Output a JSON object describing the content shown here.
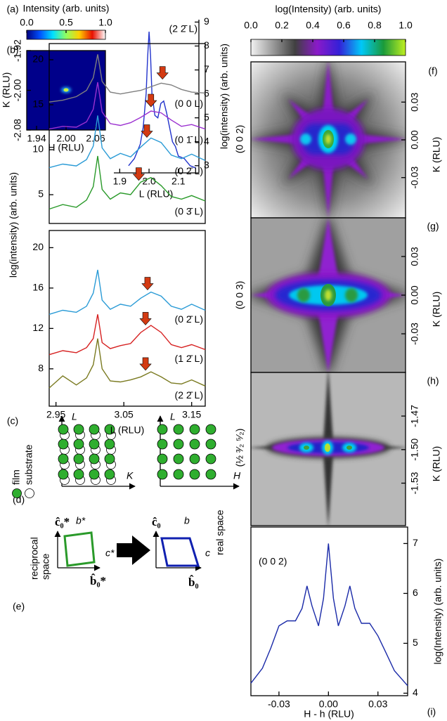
{
  "chart_data": [
    {
      "type": "heatmap",
      "panel": "(a)",
      "colorbar_title": "Intensity (arb. units)",
      "clim": [
        0,
        1
      ],
      "cticks": [
        {
          "value": 0,
          "label": "0.0"
        },
        0.5,
        {
          "value": 1,
          "label": "1.0"
        }
      ],
      "colormap": [
        "#00007f",
        "#0050ff",
        "#00e0ff",
        "#90ff60",
        "#ffd000",
        "#e81000",
        "#ffffff"
      ],
      "xlabel": "H (RLU)",
      "ylabel": "K (RLU)",
      "xlim": [
        1.92,
        2.08
      ],
      "xticks": [
        1.94,
        {
          "value": 2,
          "label": "2.00"
        },
        2.06
      ],
      "ylim": [
        -2.08,
        -1.92
      ],
      "yticks": [
        -1.92,
        {
          "value": -2,
          "label": "-2.00"
        },
        -2.08
      ]
    },
    {
      "type": "line",
      "x": [
        1.93,
        1.95,
        1.97,
        1.98,
        1.99,
        1.995,
        2.0,
        2.005,
        2.01,
        2.02,
        2.03,
        2.04,
        2.05,
        2.06,
        2.07,
        2.08,
        2.09,
        2.1,
        2.12,
        2.14,
        2.16
      ],
      "xlim": [
        1.88,
        2.17
      ],
      "xticks": [
        1.9,
        {
          "value": 2,
          "label": "2.0"
        },
        2.1
      ],
      "ylim": [
        2.7,
        9.1
      ],
      "yticks": [
        3,
        4,
        5,
        6,
        7,
        8,
        9
      ],
      "xlabel": "L (RLU)",
      "ylabel": "log(intensity) (arb. units)",
      "series": [
        {
          "name": "(2 2̄ L)",
          "color": "#2233cc",
          "values": [
            3.0,
            3.3,
            3.9,
            4.6,
            6.0,
            7.5,
            8.6,
            7.6,
            6.0,
            5.1,
            5.0,
            5.6,
            5.7,
            5.2,
            4.6,
            4.0,
            3.8,
            3.4,
            3.3,
            3.0,
            2.9
          ]
        }
      ]
    },
    {
      "type": "line",
      "panel": "(b)",
      "ylabel": "log(intensity) (arb. units)",
      "arrow_color": "#d33a12",
      "x": [
        2.94,
        2.96,
        2.98,
        2.995,
        3.005,
        3.0115,
        3.018,
        3.03,
        3.045,
        3.06,
        3.075,
        3.09,
        3.105,
        3.12,
        3.135,
        3.15,
        3.17
      ],
      "xlim": [
        2.94,
        3.17
      ],
      "ylim": [
        1.8,
        21.8
      ],
      "yticks": [
        5,
        10,
        15,
        20
      ],
      "series": [
        {
          "name": "(0 0 L)",
          "color": "#7f7f7f",
          "arrow_x": 3.107,
          "values": [
            15.3,
            15.5,
            15.9,
            16.6,
            18.0,
            20.6,
            17.6,
            16.4,
            16.2,
            16.4,
            16.6,
            17.0,
            17.4,
            17.2,
            16.7,
            16.4,
            16.3
          ]
        },
        {
          "name": "(0 1̄ L)",
          "color": "#9b30d0",
          "arrow_x": 3.09,
          "values": [
            12.3,
            12.6,
            12.5,
            13.1,
            14.5,
            17.5,
            14.2,
            12.9,
            12.7,
            13.0,
            13.6,
            14.3,
            14.1,
            13.3,
            12.6,
            12.8,
            12.3
          ]
        },
        {
          "name": "(0 2̄ L)",
          "color": "#2a9bd6",
          "arrow_x": 3.084,
          "values": [
            8.0,
            8.4,
            8.2,
            8.9,
            10.4,
            13.8,
            10.2,
            9.0,
            9.6,
            9.2,
            10.3,
            11.3,
            10.8,
            9.4,
            9.0,
            9.5,
            8.8
          ]
        },
        {
          "name": "(0 3̄ L)",
          "color": "#2a9a2a",
          "arrow_x": 3.072,
          "values": [
            3.4,
            3.9,
            3.6,
            4.4,
            5.9,
            9.3,
            5.6,
            4.5,
            5.2,
            5.0,
            6.4,
            6.9,
            6.0,
            4.8,
            4.5,
            4.9,
            4.3
          ]
        }
      ]
    },
    {
      "type": "line",
      "panel": "(c)",
      "xlabel": "L (RLU)",
      "arrow_color": "#d33a12",
      "x": [
        2.94,
        2.96,
        2.98,
        2.995,
        3.005,
        3.0115,
        3.018,
        3.03,
        3.045,
        3.06,
        3.075,
        3.09,
        3.105,
        3.12,
        3.135,
        3.15,
        3.17
      ],
      "xlim": [
        2.94,
        3.17
      ],
      "xticks": [
        2.95,
        3.05,
        3.15
      ],
      "ylim": [
        4.3,
        21.7
      ],
      "yticks": [
        8,
        12,
        16,
        20
      ],
      "series": [
        {
          "name": "(0 2̄ L)",
          "color": "#2a9bd6",
          "arrow_x": 3.085,
          "values": [
            13.4,
            13.8,
            13.6,
            14.2,
            15.5,
            17.8,
            14.8,
            13.9,
            14.4,
            14.2,
            15.0,
            15.6,
            15.2,
            14.2,
            13.9,
            14.4,
            13.8
          ]
        },
        {
          "name": "(1 2̄ L)",
          "color": "#d62020",
          "arrow_x": 3.082,
          "values": [
            9.4,
            9.8,
            9.6,
            10.1,
            11.0,
            13.4,
            10.6,
            10.0,
            10.3,
            10.5,
            11.6,
            12.3,
            11.6,
            10.4,
            10.1,
            10.4,
            9.9
          ]
        },
        {
          "name": "(2 2̄ L)",
          "color": "#7a7a20",
          "arrow_x": 3.082,
          "values": [
            6.1,
            7.3,
            6.4,
            7.1,
            8.4,
            11.0,
            8.0,
            6.8,
            6.7,
            6.9,
            7.2,
            7.7,
            7.2,
            6.6,
            6.5,
            6.9,
            6.3
          ]
        }
      ]
    },
    {
      "type": "heatmap",
      "panel": "(f)",
      "label": "(0 0 2)",
      "colorbar_title": "log(Intensity) (arb. units)",
      "clim": [
        0,
        1
      ],
      "cticks": [
        {
          "value": 0,
          "label": "0.0"
        },
        0.2,
        0.4,
        0.6,
        0.8,
        {
          "value": 1,
          "label": "1.0"
        }
      ],
      "colormap": [
        "#f2f2f2",
        "#9a9a9a",
        "#404040",
        "#8a1ac8",
        "#3420d8",
        "#00c8f8",
        "#1a9a3a",
        "#c0f020"
      ],
      "ylabel": "K (RLU)",
      "ylim": [
        -0.062,
        0.062
      ],
      "yticks": [
        0.03,
        {
          "value": 0,
          "label": "0.00"
        },
        -0.03
      ]
    },
    {
      "type": "heatmap",
      "panel": "(g)",
      "label": "(0 0 3)",
      "ylabel": "K (RLU)",
      "ylim": [
        -0.06,
        0.06
      ],
      "yticks": [
        0.03,
        {
          "value": 0,
          "label": "0.00"
        },
        -0.03
      ]
    },
    {
      "type": "heatmap",
      "panel": "(h)",
      "label": "(½ ³⁄₂ ⁵⁄₂)",
      "ylabel": "K (RLU)",
      "ylim": [
        -1.568,
        -1.431
      ],
      "yticks": [
        -1.47,
        {
          "value": -1.5,
          "label": "-1.50"
        },
        -1.53
      ]
    },
    {
      "type": "line",
      "panel": "(i)",
      "x": [
        -0.047,
        -0.04,
        -0.035,
        -0.03,
        -0.025,
        -0.02,
        -0.016,
        -0.013,
        -0.01,
        -0.006,
        -0.003,
        0,
        0.003,
        0.006,
        0.01,
        0.013,
        0.016,
        0.02,
        0.025,
        0.03,
        0.035,
        0.04,
        0.048
      ],
      "xlim": [
        -0.047,
        0.048
      ],
      "xticks": [
        -0.03,
        {
          "value": 0,
          "label": "0.00"
        },
        0.03
      ],
      "ylim": [
        3.95,
        7.33
      ],
      "yticks": [
        4,
        5,
        6,
        7
      ],
      "xlabel": "H - h (RLU)",
      "ylabel": "log(Intensity) (arb. units)",
      "series": [
        {
          "name": "(0 0 2)",
          "color": "#1a2aa8",
          "values": [
            4.2,
            4.5,
            4.9,
            5.35,
            5.45,
            5.45,
            5.7,
            6.15,
            5.75,
            5.35,
            5.9,
            7.0,
            5.9,
            5.35,
            5.75,
            6.15,
            5.7,
            5.4,
            5.4,
            5.15,
            4.8,
            4.45,
            4.15
          ]
        }
      ]
    }
  ],
  "panel_d": {
    "label": "(d)",
    "left_y": "L",
    "left_x": "K",
    "right_y": "L",
    "right_x": "H",
    "film": "film",
    "substrate": "substrate"
  },
  "panel_e": {
    "label": "(e)",
    "reciprocal": "reciprocal",
    "space": "space",
    "c0_star": "ĉ₀*",
    "b0_star": "b̂₀*",
    "b_star": "b*",
    "c_star": "c*",
    "c0": "ĉ₀",
    "b0": "b̂₀",
    "b": "b",
    "c": "c",
    "real_space": "real space"
  }
}
